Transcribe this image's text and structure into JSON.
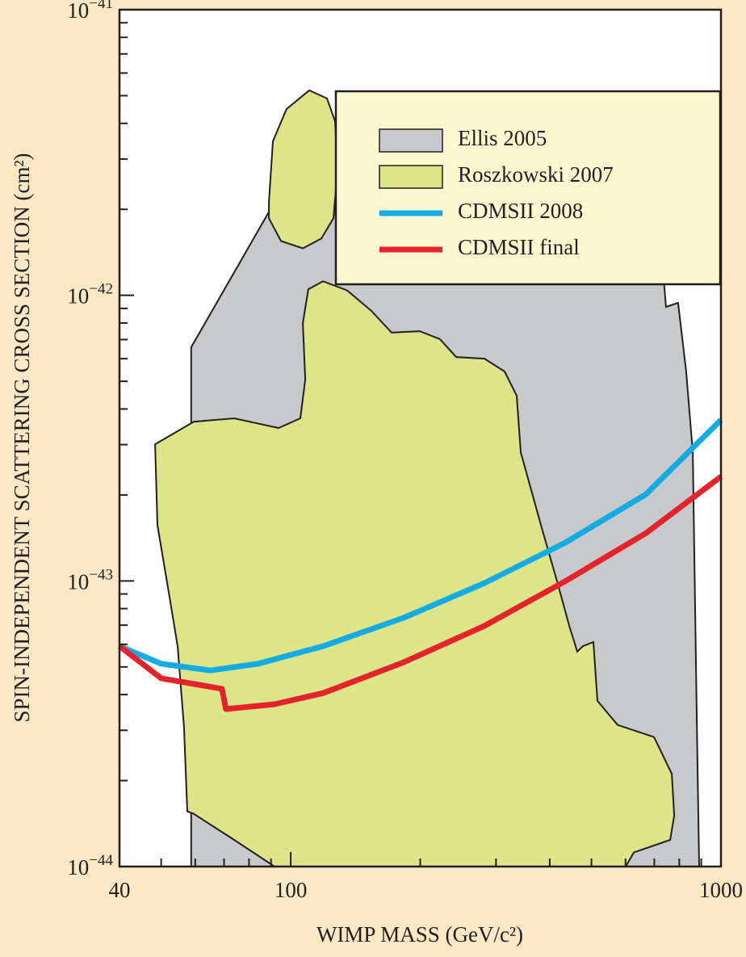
{
  "chart_data": {
    "type": "line",
    "xlabel": "WIMP MASS (GeV/c²)",
    "ylabel": "SPIN-INDEPENDENT SCATTERING CROSS SECTION (cm²)",
    "xscale": "log",
    "yscale": "log",
    "xlim": [
      40,
      1000
    ],
    "ylim": [
      1e-44,
      1e-41
    ],
    "xticks": [
      40,
      100,
      1000
    ],
    "xminor_ticks": [
      50,
      60,
      70,
      80,
      90,
      200,
      300,
      400,
      500,
      600,
      700,
      800,
      900
    ],
    "yticks": [
      {
        "value": 1e-44,
        "label": "10",
        "sup": "−44"
      },
      {
        "value": 1e-43,
        "label": "10",
        "sup": "−43"
      },
      {
        "value": 1e-42,
        "label": "10",
        "sup": "−42"
      },
      {
        "value": 1e-41,
        "label": "10",
        "sup": "−41"
      }
    ],
    "yminor_ticks": [
      2e-44,
      3e-44,
      4e-44,
      5e-44,
      6e-44,
      7e-44,
      8e-44,
      9e-44,
      2e-43,
      3e-43,
      4e-43,
      5e-43,
      6e-43,
      7e-43,
      8e-43,
      9e-43,
      2e-42,
      3e-42,
      4e-42,
      5e-42,
      6e-42,
      7e-42,
      8e-42,
      9e-42
    ],
    "legend": "upper right",
    "regions": [
      {
        "name": "Ellis 2005",
        "color": "#c8c9cb",
        "x": [
          58.7,
          58.7,
          91.7,
          118.9,
          282,
          699,
          745,
          795,
          830,
          860,
          868,
          879,
          890
        ],
        "y": [
          1e-44,
          6.58e-43,
          2.12e-42,
          2.94e-42,
          4.07e-42,
          2.94e-42,
          9.11e-43,
          9.41e-43,
          5.41e-43,
          2.82e-43,
          1.13e-43,
          3.08e-44,
          1e-44
        ]
      },
      {
        "name": "Roszkowski 2007",
        "color": "#dde589",
        "x": [
          48.4,
          59.5,
          73.9,
          93.7,
          105.3,
          108.1,
          106.7,
          109.9,
          118.9,
          135.3,
          154,
          171.6,
          199.5,
          222.3,
          242.4,
          282,
          314.2,
          335.2,
          342.5,
          381.6,
          416,
          444,
          463.4,
          477.6,
          505.2,
          516.4,
          575.3,
          699,
          768.6,
          778.6,
          761.9,
          627.2,
          600.5,
          91.7,
          73.9,
          59.5,
          57.5,
          56.5,
          54.6,
          52.3,
          49.0
        ],
        "y": [
          3.01e-43,
          3.61e-43,
          3.71e-43,
          3.43e-43,
          3.71e-43,
          5.07e-43,
          8e-43,
          1.05e-42,
          1.12e-42,
          1.04e-42,
          8.82e-43,
          7.4e-43,
          7.49e-43,
          7.02e-43,
          6.08e-43,
          6e-43,
          5.41e-43,
          4.45e-43,
          2.82e-43,
          1.57e-43,
          9.96e-44,
          6.96e-44,
          5.66e-44,
          5.91e-44,
          6.11e-44,
          3.8e-44,
          3.13e-44,
          2.84e-44,
          2.11e-44,
          1.51e-44,
          1.24e-44,
          1.12e-44,
          1e-44,
          1e-44,
          1.24e-44,
          1.53e-44,
          1.56e-44,
          3.08e-44,
          5.91e-44,
          8.74e-44,
          1.57e-43
        ],
        "x2": [
          89.0,
          90.9,
          97.8,
          110.4,
          121.4,
          126.8,
          128.5,
          125.7,
          117.8,
          106.7,
          94.9,
          89.0
        ],
        "y2": [
          2.12e-42,
          3.46e-42,
          4.49e-42,
          5.22e-42,
          4.89e-42,
          4.07e-42,
          2.76e-42,
          1.86e-42,
          1.58e-42,
          1.46e-42,
          1.55e-42,
          1.86e-42
        ]
      }
    ],
    "series": [
      {
        "name": "CDMSII 2008",
        "color": "#12abe3",
        "x": [
          40,
          50,
          65,
          84,
          119,
          183,
          282,
          434,
          669,
          1000
        ],
        "values": [
          5.91e-44,
          5.13e-44,
          4.86e-44,
          5.13e-44,
          5.91e-44,
          7.43e-44,
          9.83e-44,
          1.36e-43,
          2.01e-43,
          3.66e-43
        ]
      },
      {
        "name": "CDMSII final",
        "color": "#e6232a",
        "x": [
          40,
          50,
          69.2,
          70.7,
          91.7,
          119,
          183,
          282,
          434,
          669,
          1000
        ],
        "values": [
          5.91e-44,
          4.56e-44,
          4.19e-44,
          3.56e-44,
          3.7e-44,
          4.05e-44,
          5.19e-44,
          6.96e-44,
          9.96e-44,
          1.47e-43,
          2.32e-43
        ]
      }
    ]
  }
}
